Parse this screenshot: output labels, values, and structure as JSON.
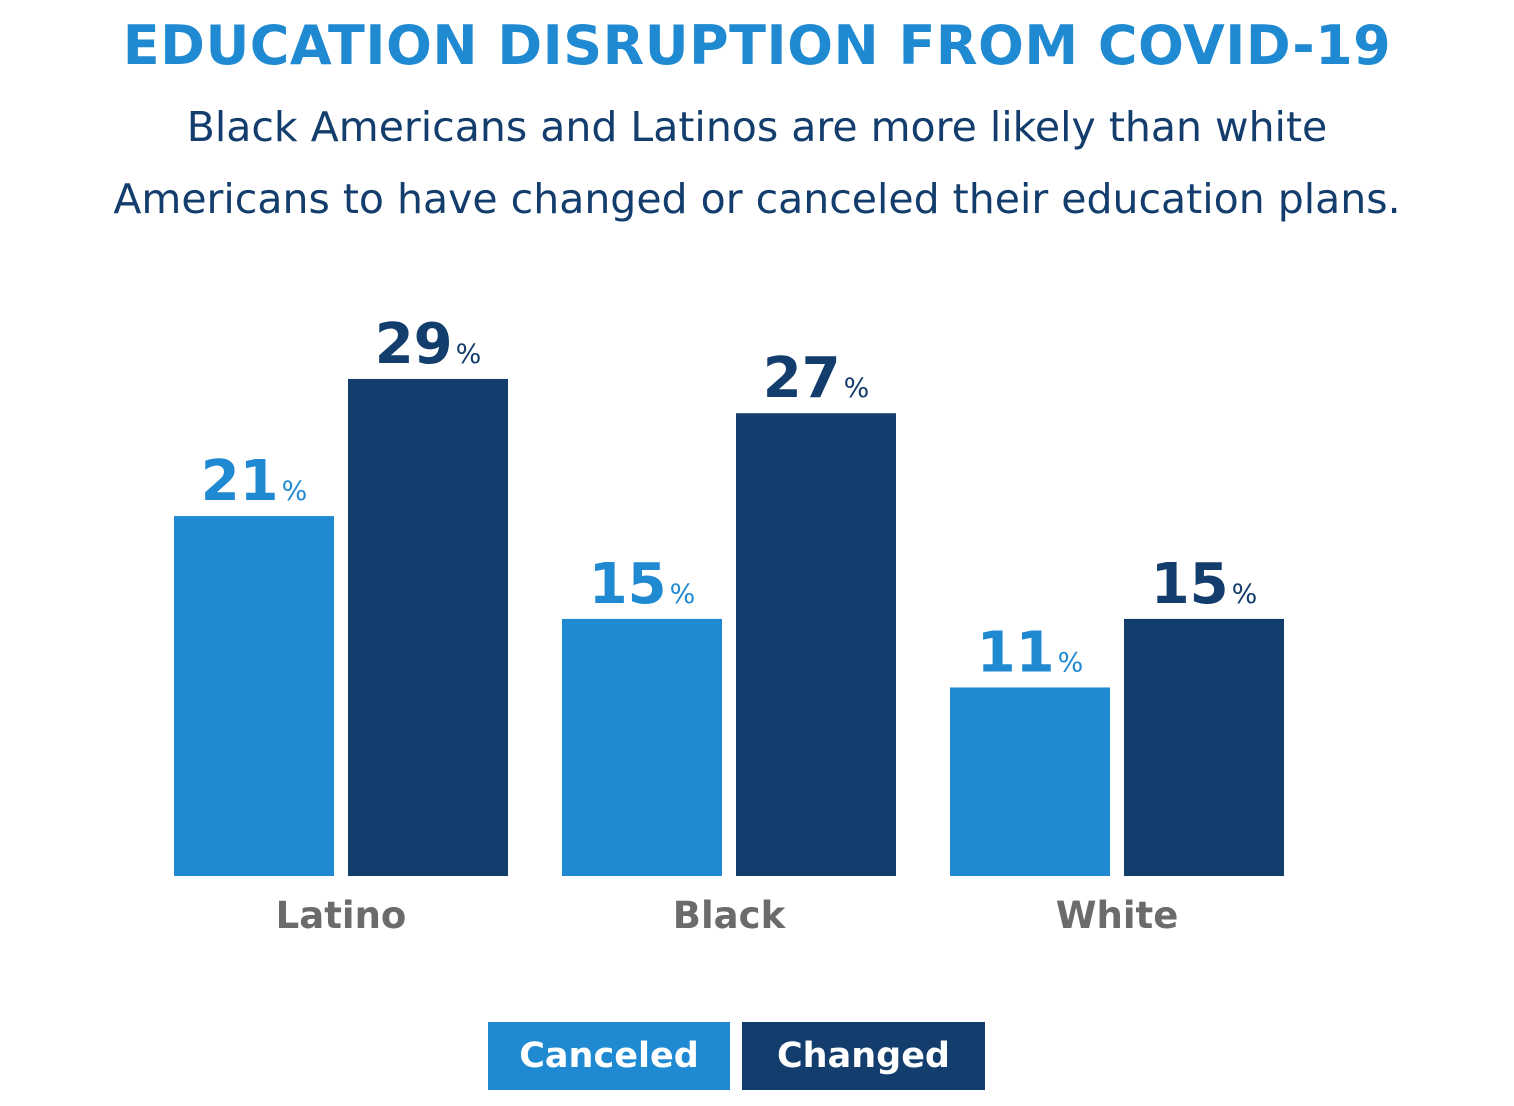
{
  "chart_data": {
    "type": "bar",
    "title": "EDUCATION DISRUPTION FROM COVID-19",
    "subtitle_lines": [
      "Black Americans and Latinos are more likely than white",
      "Americans to have changed or canceled their education plans."
    ],
    "categories": [
      "Latino",
      "Black",
      "White"
    ],
    "series": [
      {
        "name": "Canceled",
        "values": [
          21,
          15,
          11
        ],
        "color": "#1f8ad1"
      },
      {
        "name": "Changed",
        "values": [
          29,
          27,
          15
        ],
        "color": "#133d6c"
      }
    ],
    "value_suffix": "%",
    "ylim": [
      0,
      30
    ],
    "grid": false,
    "legend_placement": "bottom-center",
    "category_label_color": "#6b6b6b"
  }
}
